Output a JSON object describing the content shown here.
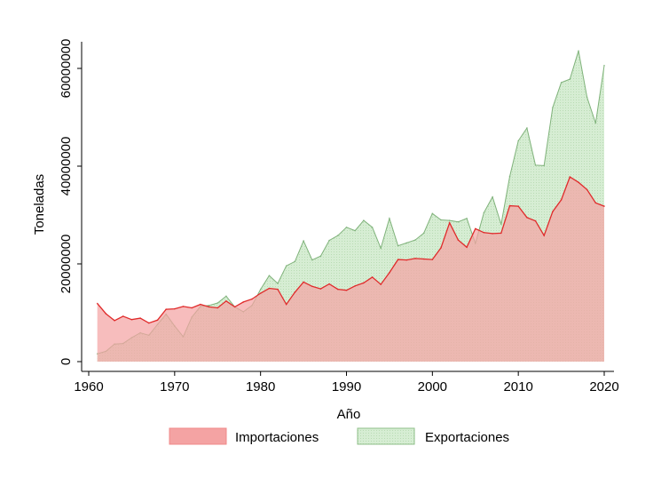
{
  "chart_data": {
    "type": "area",
    "xlabel": "Año",
    "ylabel": "Toneladas",
    "xlim": [
      1961,
      2020
    ],
    "ylim": [
      0,
      65000000
    ],
    "x_ticks": [
      1960,
      1970,
      1980,
      1990,
      2000,
      2010,
      2020
    ],
    "y_ticks": [
      0,
      20000000,
      40000000,
      60000000
    ],
    "legend_position": "bottom",
    "grid": false,
    "x": [
      1961,
      1962,
      1963,
      1964,
      1965,
      1966,
      1967,
      1968,
      1969,
      1970,
      1971,
      1972,
      1973,
      1974,
      1975,
      1976,
      1977,
      1978,
      1979,
      1980,
      1981,
      1982,
      1983,
      1984,
      1985,
      1986,
      1987,
      1988,
      1989,
      1990,
      1991,
      1992,
      1993,
      1994,
      1995,
      1996,
      1997,
      1998,
      1999,
      2000,
      2001,
      2002,
      2003,
      2004,
      2005,
      2006,
      2007,
      2008,
      2009,
      2010,
      2011,
      2012,
      2013,
      2014,
      2015,
      2016,
      2017,
      2018,
      2019,
      2020
    ],
    "series": [
      {
        "name": "Importaciones",
        "fill": "#f4a3a3",
        "line": "#e02b2b",
        "values": [
          11900000,
          9800000,
          8400000,
          9300000,
          8600000,
          8900000,
          7900000,
          8500000,
          10700000,
          10800000,
          11300000,
          11000000,
          11700000,
          11200000,
          11000000,
          12400000,
          11200000,
          12200000,
          12800000,
          14000000,
          15000000,
          14800000,
          11700000,
          14200000,
          16300000,
          15400000,
          14900000,
          15900000,
          14800000,
          14600000,
          15500000,
          16100000,
          17300000,
          15800000,
          18200000,
          20900000,
          20800000,
          21100000,
          21000000,
          20900000,
          23300000,
          28400000,
          24900000,
          23400000,
          27200000,
          26400000,
          26200000,
          26300000,
          31900000,
          31800000,
          29500000,
          28800000,
          25800000,
          30700000,
          33100000,
          37800000,
          36700000,
          35200000,
          32500000,
          31800000
        ]
      },
      {
        "name": "Exportaciones",
        "fill": "#d6edd3",
        "line": "#7fb27a",
        "values": [
          1600000,
          2100000,
          3600000,
          3700000,
          4900000,
          5900000,
          5400000,
          7600000,
          9700000,
          7300000,
          5100000,
          9100000,
          11300000,
          11500000,
          12000000,
          13400000,
          11200000,
          10200000,
          11500000,
          14800000,
          17600000,
          16000000,
          19600000,
          20500000,
          24700000,
          20800000,
          21600000,
          24800000,
          25800000,
          27500000,
          26800000,
          28900000,
          27500000,
          23200000,
          29300000,
          23700000,
          24300000,
          24900000,
          26300000,
          30300000,
          29000000,
          28900000,
          28600000,
          29300000,
          24200000,
          30500000,
          33700000,
          28100000,
          37900000,
          45200000,
          47800000,
          40200000,
          40100000,
          52000000,
          57100000,
          57800000,
          63600000,
          54100000,
          48800000,
          60600000
        ]
      }
    ]
  }
}
